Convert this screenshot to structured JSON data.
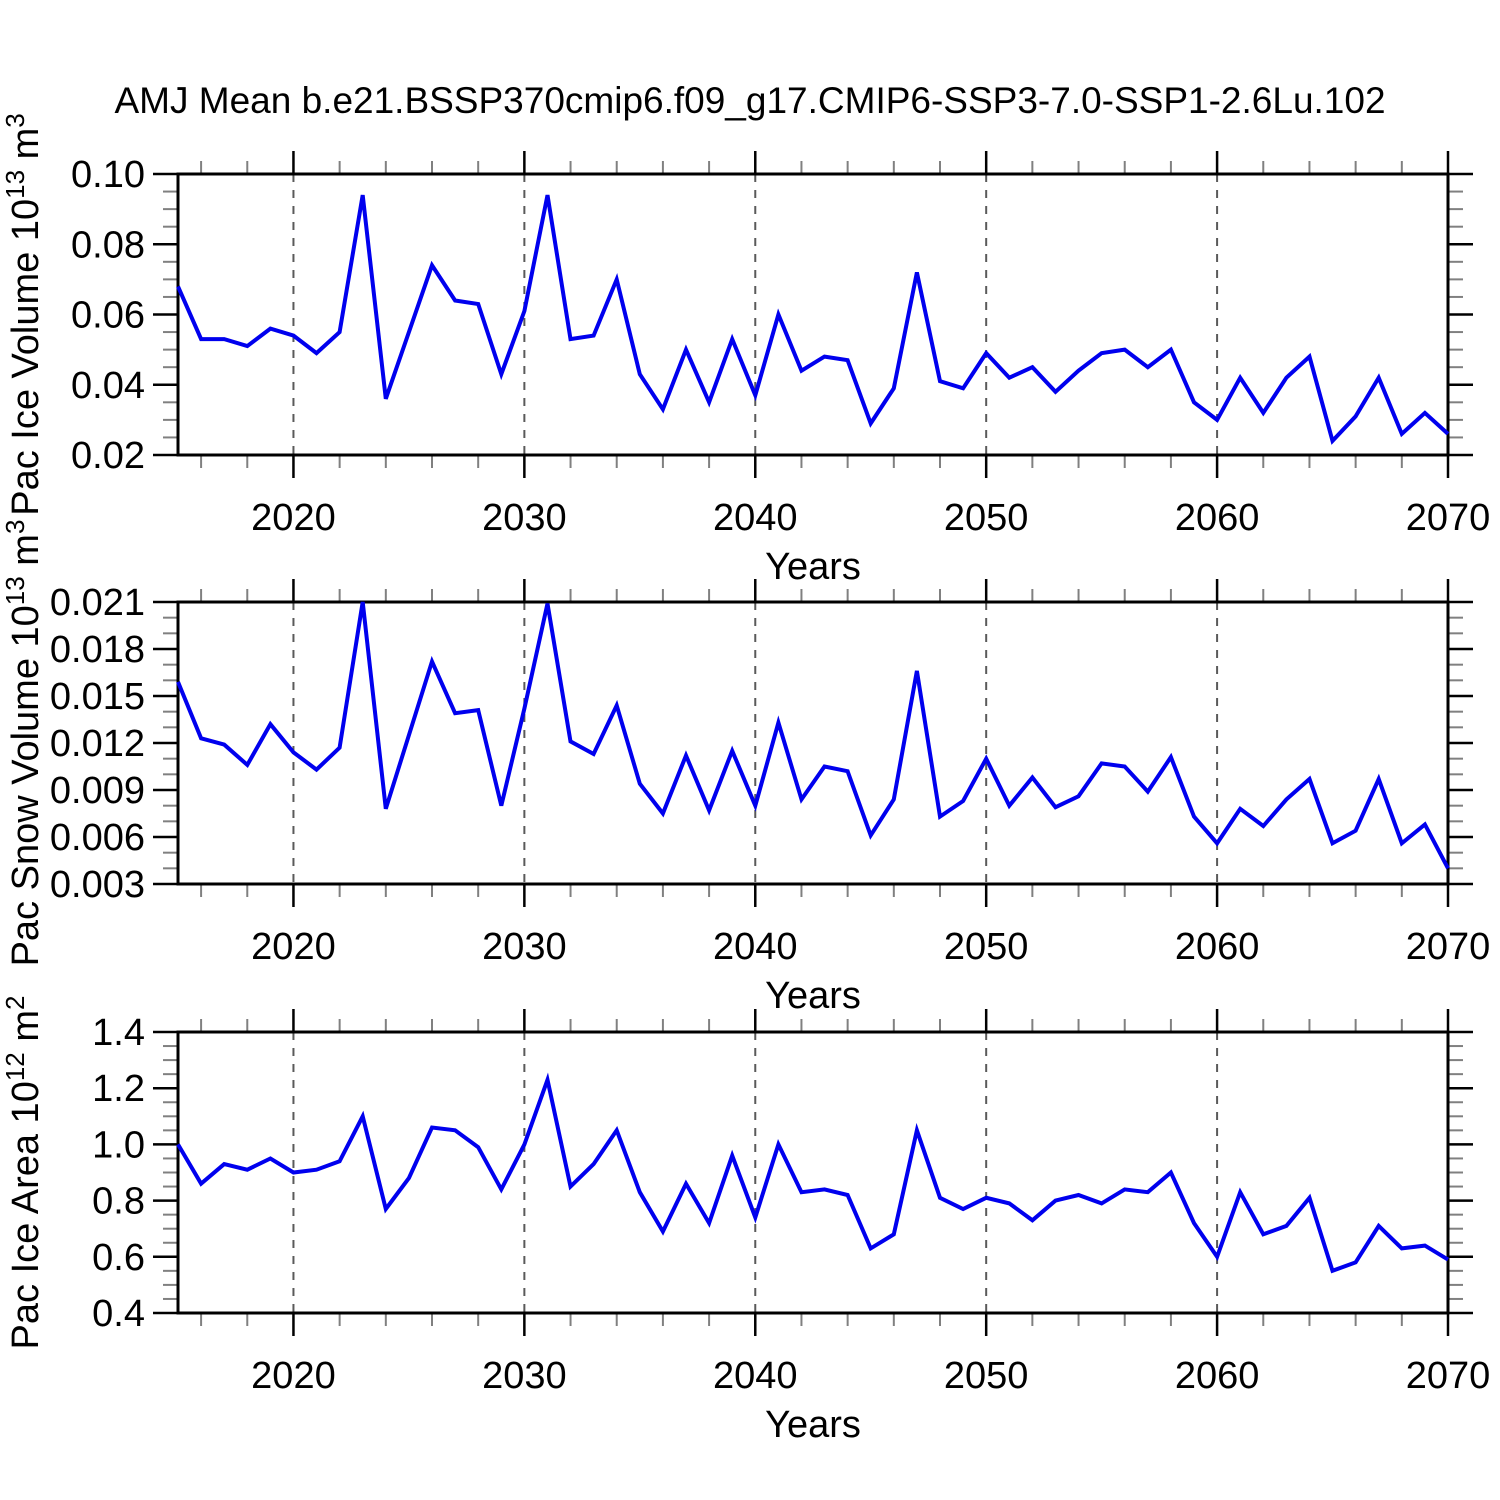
{
  "title": "AMJ Mean b.e21.BSSP370cmip6.f09_g17.CMIP6-SSP3-7.0-SSP1-2.6Lu.102",
  "colors": {
    "line": "#0000EE",
    "axis": "#000000",
    "gridline": "#5A5A5A",
    "minor_tick": "#808080",
    "background": "#FFFFFF"
  },
  "x_axis": {
    "label": "Years",
    "start": 2015,
    "end": 2070,
    "major_ticks": [
      2020,
      2030,
      2040,
      2050,
      2060,
      2070
    ],
    "minor_tick_step": 2,
    "gridline_years": [
      2020,
      2030,
      2040,
      2050,
      2060
    ]
  },
  "years": [
    2015,
    2016,
    2017,
    2018,
    2019,
    2020,
    2021,
    2022,
    2023,
    2024,
    2025,
    2026,
    2027,
    2028,
    2029,
    2030,
    2031,
    2032,
    2033,
    2034,
    2035,
    2036,
    2037,
    2038,
    2039,
    2040,
    2041,
    2042,
    2043,
    2044,
    2045,
    2046,
    2047,
    2048,
    2049,
    2050,
    2051,
    2052,
    2053,
    2054,
    2055,
    2056,
    2057,
    2058,
    2059,
    2060,
    2061,
    2062,
    2063,
    2064,
    2065,
    2066,
    2067,
    2068,
    2069,
    2070
  ],
  "chart_data": [
    {
      "type": "line",
      "name": "Pac Ice Volume",
      "xlabel": "Years",
      "ylabel": "Pac Ice Volume 10^13 m^3",
      "ylabel_parts": {
        "base": "Pac Ice Volume 10",
        "exp": "13",
        "unit": " m",
        "unit_exp": "3"
      },
      "ylim": [
        0.02,
        0.1
      ],
      "y_minor_step": 0.005,
      "yticks": [
        {
          "v": 0.02,
          "label": "0.02"
        },
        {
          "v": 0.04,
          "label": "0.04"
        },
        {
          "v": 0.06,
          "label": "0.06"
        },
        {
          "v": 0.08,
          "label": "0.08"
        },
        {
          "v": 0.1,
          "label": "0.10"
        }
      ],
      "legend": "none",
      "grid": "vertical-dashed",
      "values": [
        0.068,
        0.053,
        0.053,
        0.051,
        0.056,
        0.054,
        0.049,
        0.055,
        0.094,
        0.036,
        0.055,
        0.074,
        0.064,
        0.063,
        0.043,
        0.061,
        0.094,
        0.053,
        0.054,
        0.07,
        0.043,
        0.033,
        0.05,
        0.035,
        0.053,
        0.037,
        0.06,
        0.044,
        0.048,
        0.047,
        0.029,
        0.039,
        0.072,
        0.041,
        0.039,
        0.049,
        0.042,
        0.045,
        0.038,
        0.044,
        0.049,
        0.05,
        0.045,
        0.05,
        0.035,
        0.03,
        0.042,
        0.032,
        0.042,
        0.048,
        0.024,
        0.031,
        0.042,
        0.026,
        0.032,
        0.026
      ]
    },
    {
      "type": "line",
      "name": "Pac Snow Volume",
      "xlabel": "Years",
      "ylabel": "Pac Snow Volume 10^13 m^3",
      "ylabel_parts": {
        "base": "Pac Snow Volume 10",
        "exp": "13",
        "unit": " m",
        "unit_exp": "3"
      },
      "ylim": [
        0.003,
        0.021
      ],
      "y_minor_step": 0.001,
      "yticks": [
        {
          "v": 0.003,
          "label": "0.003"
        },
        {
          "v": 0.006,
          "label": "0.006"
        },
        {
          "v": 0.009,
          "label": "0.009"
        },
        {
          "v": 0.012,
          "label": "0.012"
        },
        {
          "v": 0.015,
          "label": "0.015"
        },
        {
          "v": 0.018,
          "label": "0.018"
        },
        {
          "v": 0.021,
          "label": "0.021"
        }
      ],
      "legend": "none",
      "grid": "vertical-dashed",
      "values": [
        0.0159,
        0.0123,
        0.0119,
        0.0106,
        0.0132,
        0.0114,
        0.0103,
        0.0117,
        0.021,
        0.0078,
        0.0125,
        0.0172,
        0.0139,
        0.0141,
        0.008,
        0.0142,
        0.0209,
        0.0121,
        0.0113,
        0.0144,
        0.0094,
        0.0075,
        0.0112,
        0.0077,
        0.0115,
        0.008,
        0.0133,
        0.0084,
        0.0105,
        0.0102,
        0.0061,
        0.0084,
        0.0166,
        0.0073,
        0.0083,
        0.011,
        0.008,
        0.0098,
        0.0079,
        0.0086,
        0.0107,
        0.0105,
        0.0089,
        0.0111,
        0.0073,
        0.0056,
        0.0078,
        0.0067,
        0.0084,
        0.0097,
        0.0056,
        0.0064,
        0.0097,
        0.0056,
        0.0068,
        0.004
      ]
    },
    {
      "type": "line",
      "name": "Pac Ice Area",
      "xlabel": "Years",
      "ylabel": "Pac Ice Area 10^12 m^2",
      "ylabel_parts": {
        "base": "Pac Ice Area 10",
        "exp": "12",
        "unit": " m",
        "unit_exp": "2"
      },
      "ylim": [
        0.4,
        1.4
      ],
      "y_minor_step": 0.05,
      "yticks": [
        {
          "v": 0.4,
          "label": "0.4"
        },
        {
          "v": 0.6,
          "label": "0.6"
        },
        {
          "v": 0.8,
          "label": "0.8"
        },
        {
          "v": 1.0,
          "label": "1.0"
        },
        {
          "v": 1.2,
          "label": "1.2"
        },
        {
          "v": 1.4,
          "label": "1.4"
        }
      ],
      "legend": "none",
      "grid": "vertical-dashed",
      "values": [
        1.0,
        0.86,
        0.93,
        0.91,
        0.95,
        0.9,
        0.91,
        0.94,
        1.1,
        0.77,
        0.88,
        1.06,
        1.05,
        0.99,
        0.84,
        1.0,
        1.23,
        0.85,
        0.93,
        1.05,
        0.83,
        0.69,
        0.86,
        0.72,
        0.96,
        0.74,
        1.0,
        0.83,
        0.84,
        0.82,
        0.63,
        0.68,
        1.05,
        0.81,
        0.77,
        0.81,
        0.79,
        0.73,
        0.8,
        0.82,
        0.79,
        0.84,
        0.83,
        0.9,
        0.72,
        0.6,
        0.83,
        0.68,
        0.71,
        0.81,
        0.55,
        0.58,
        0.71,
        0.63,
        0.64,
        0.59
      ]
    }
  ]
}
